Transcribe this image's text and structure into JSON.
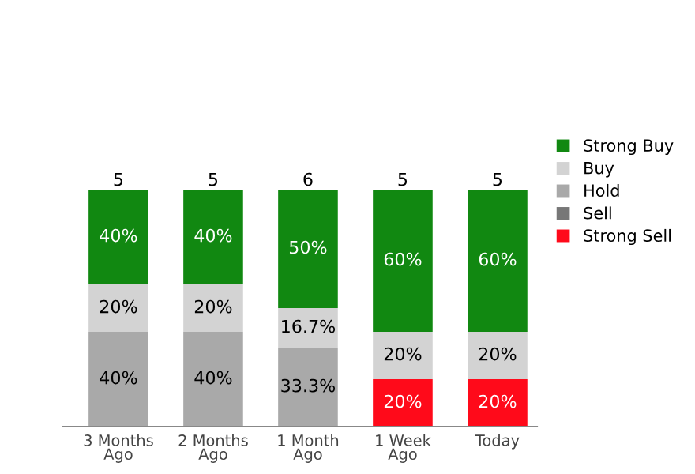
{
  "chart_data": {
    "type": "bar",
    "stacked": true,
    "tick_labels": "x",
    "grid": false,
    "legend": "right",
    "categories": [
      "3 Months\nAgo",
      "2 Months\nAgo",
      "1 Month\nAgo",
      "1 Week\nAgo",
      "Today"
    ],
    "series": [
      {
        "name": "Strong Sell",
        "color": "#ff0a1a",
        "values": [
          null,
          null,
          null,
          20,
          20
        ],
        "value_labels": [
          null,
          null,
          null,
          "20%",
          "20%"
        ]
      },
      {
        "name": "Sell",
        "color": "#777777",
        "values": [
          null,
          null,
          null,
          null,
          null
        ]
      },
      {
        "name": "Hold",
        "color": "#a9a9a9",
        "values": [
          40,
          40,
          33.3,
          null,
          null
        ],
        "value_labels": [
          "40%",
          "40%",
          "33.3%",
          null,
          null
        ]
      },
      {
        "name": "Buy",
        "color": "#d3d3d3",
        "values": [
          20,
          20,
          16.7,
          20,
          20
        ],
        "value_labels": [
          "20%",
          "20%",
          "16.7%",
          "20%",
          "20%"
        ]
      },
      {
        "name": "Strong Buy",
        "color": "#118811",
        "values": [
          40,
          40,
          50,
          60,
          60
        ],
        "value_labels": [
          "40%",
          "40%",
          "50%",
          "60%",
          "60%"
        ]
      }
    ],
    "annotations": [
      "5",
      "5",
      "6",
      "5",
      "5"
    ]
  }
}
